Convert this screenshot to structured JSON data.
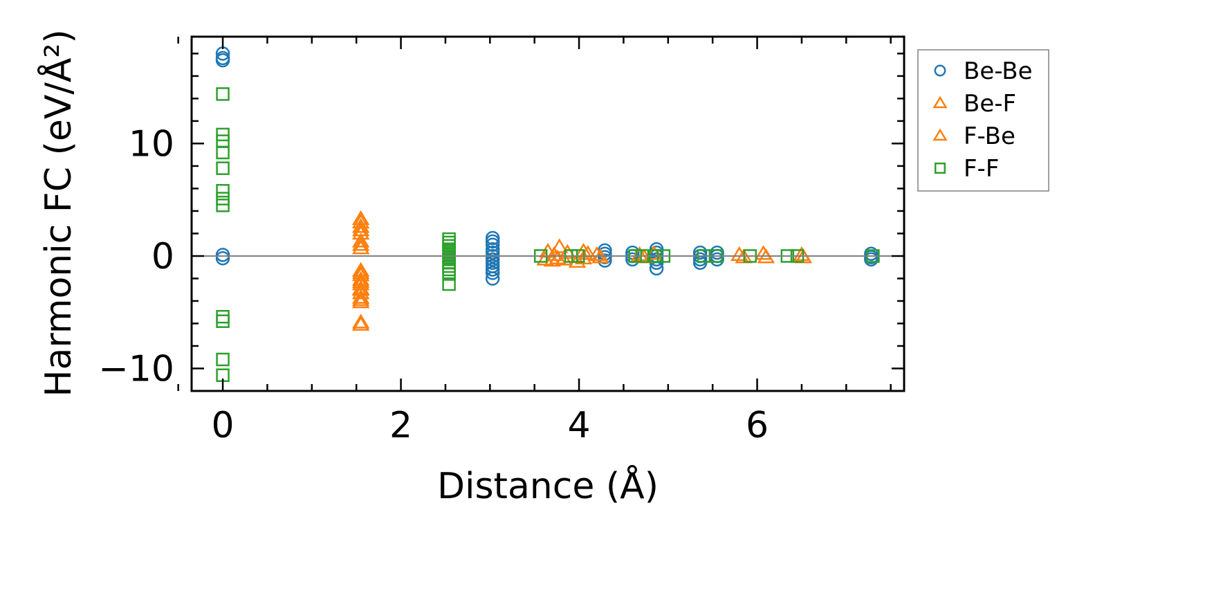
{
  "chart_data": {
    "type": "scatter",
    "title": "",
    "xlabel": "Distance (Å)",
    "ylabel": "Harmonic FC (eV/Å²)",
    "xlim": [
      -0.35,
      7.65
    ],
    "ylim": [
      -12,
      19.5
    ],
    "xticks": [
      0,
      2,
      4,
      6
    ],
    "xtick_labels": [
      "0",
      "2",
      "4",
      "6"
    ],
    "yticks": [
      -10,
      0,
      10
    ],
    "ytick_labels": [
      "−10",
      "0",
      "10"
    ],
    "zero_line": true,
    "grid": false,
    "legend_position": "outside-top-right",
    "series": [
      {
        "name": "Be-Be",
        "marker": "circle",
        "color": "#1f77b4",
        "points": [
          [
            0,
            18.0
          ],
          [
            0,
            17.6
          ],
          [
            0,
            17.4
          ],
          [
            0,
            0.1
          ],
          [
            0,
            -0.2
          ],
          [
            3.03,
            1.6
          ],
          [
            3.03,
            1.3
          ],
          [
            3.03,
            1.0
          ],
          [
            3.03,
            0.6
          ],
          [
            3.03,
            0.3
          ],
          [
            3.03,
            0.0
          ],
          [
            3.03,
            -0.3
          ],
          [
            3.03,
            -0.6
          ],
          [
            3.03,
            -0.9
          ],
          [
            3.03,
            -1.2
          ],
          [
            3.03,
            -1.5
          ],
          [
            3.03,
            -2.0
          ],
          [
            4.29,
            0.5
          ],
          [
            4.29,
            0.2
          ],
          [
            4.29,
            -0.1
          ],
          [
            4.29,
            -0.4
          ],
          [
            4.6,
            0.3
          ],
          [
            4.6,
            0.0
          ],
          [
            4.6,
            -0.3
          ],
          [
            4.87,
            0.6
          ],
          [
            4.87,
            0.3
          ],
          [
            4.87,
            0.0
          ],
          [
            4.87,
            -0.3
          ],
          [
            4.87,
            -0.6
          ],
          [
            4.87,
            -1.1
          ],
          [
            5.36,
            0.3
          ],
          [
            5.36,
            0.0
          ],
          [
            5.36,
            -0.3
          ],
          [
            5.36,
            -0.6
          ],
          [
            5.55,
            0.3
          ],
          [
            5.55,
            0.0
          ],
          [
            5.55,
            -0.3
          ],
          [
            7.28,
            0.2
          ],
          [
            7.28,
            -0.1
          ],
          [
            7.28,
            -0.3
          ]
        ]
      },
      {
        "name": "Be-F",
        "marker": "triangle",
        "color": "#ff7f0e",
        "points": [
          [
            1.55,
            3.3
          ],
          [
            1.55,
            2.6
          ],
          [
            1.55,
            2.0
          ],
          [
            1.55,
            1.3
          ],
          [
            1.55,
            0.7
          ],
          [
            1.55,
            -1.3
          ],
          [
            1.55,
            -1.7
          ],
          [
            1.55,
            -2.1
          ],
          [
            1.55,
            -2.5
          ],
          [
            1.55,
            -2.9
          ],
          [
            1.55,
            -3.3
          ],
          [
            1.55,
            -3.7
          ],
          [
            1.55,
            -4.1
          ],
          [
            1.55,
            -5.9
          ],
          [
            3.65,
            0.4
          ],
          [
            3.72,
            0.1
          ],
          [
            3.78,
            0.8
          ],
          [
            3.83,
            -0.3
          ],
          [
            4.05,
            0.4
          ],
          [
            4.05,
            -0.2
          ],
          [
            4.2,
            0.1
          ],
          [
            4.68,
            0.1
          ],
          [
            4.84,
            0.2
          ],
          [
            5.8,
            0.1
          ],
          [
            6.07,
            0.2
          ],
          [
            6.5,
            0.1
          ]
        ]
      },
      {
        "name": "F-Be",
        "marker": "triangle",
        "color": "#ff7f0e",
        "points": [
          [
            1.55,
            3.0
          ],
          [
            1.55,
            2.3
          ],
          [
            1.55,
            1.0
          ],
          [
            1.55,
            -1.5
          ],
          [
            1.55,
            -2.3
          ],
          [
            1.55,
            -3.0
          ],
          [
            1.55,
            -3.9
          ],
          [
            1.55,
            -6.1
          ],
          [
            3.62,
            -0.3
          ],
          [
            3.7,
            -0.4
          ],
          [
            3.76,
            -0.2
          ],
          [
            3.87,
            0.3
          ],
          [
            3.98,
            -0.5
          ],
          [
            4.1,
            0.2
          ],
          [
            4.24,
            -0.1
          ],
          [
            4.73,
            -0.1
          ],
          [
            5.85,
            -0.1
          ],
          [
            6.1,
            -0.1
          ],
          [
            6.52,
            -0.1
          ]
        ]
      },
      {
        "name": "F-F",
        "marker": "square",
        "color": "#2ca02c",
        "points": [
          [
            0,
            14.4
          ],
          [
            0,
            10.8
          ],
          [
            0,
            10.2
          ],
          [
            0,
            9.2
          ],
          [
            0,
            7.8
          ],
          [
            0,
            5.8
          ],
          [
            0,
            5.1
          ],
          [
            0,
            4.5
          ],
          [
            0,
            -5.4
          ],
          [
            0,
            -5.8
          ],
          [
            0,
            -9.2
          ],
          [
            0,
            -10.6
          ],
          [
            2.54,
            1.5
          ],
          [
            2.54,
            1.2
          ],
          [
            2.54,
            0.9
          ],
          [
            2.54,
            0.6
          ],
          [
            2.54,
            0.3
          ],
          [
            2.54,
            0.0
          ],
          [
            2.54,
            -0.3
          ],
          [
            2.54,
            -0.6
          ],
          [
            2.54,
            -0.9
          ],
          [
            2.54,
            -1.2
          ],
          [
            2.54,
            -1.6
          ],
          [
            2.54,
            -2.5
          ],
          [
            3.57,
            0.0
          ],
          [
            3.91,
            0.0
          ],
          [
            3.99,
            0.0
          ],
          [
            4.63,
            0.0
          ],
          [
            4.71,
            0.0
          ],
          [
            4.86,
            0.0
          ],
          [
            4.95,
            0.0
          ],
          [
            5.4,
            0.0
          ],
          [
            5.54,
            0.0
          ],
          [
            5.92,
            0.0
          ],
          [
            6.34,
            0.0
          ],
          [
            6.45,
            0.0
          ],
          [
            7.3,
            0.0
          ]
        ]
      }
    ]
  }
}
